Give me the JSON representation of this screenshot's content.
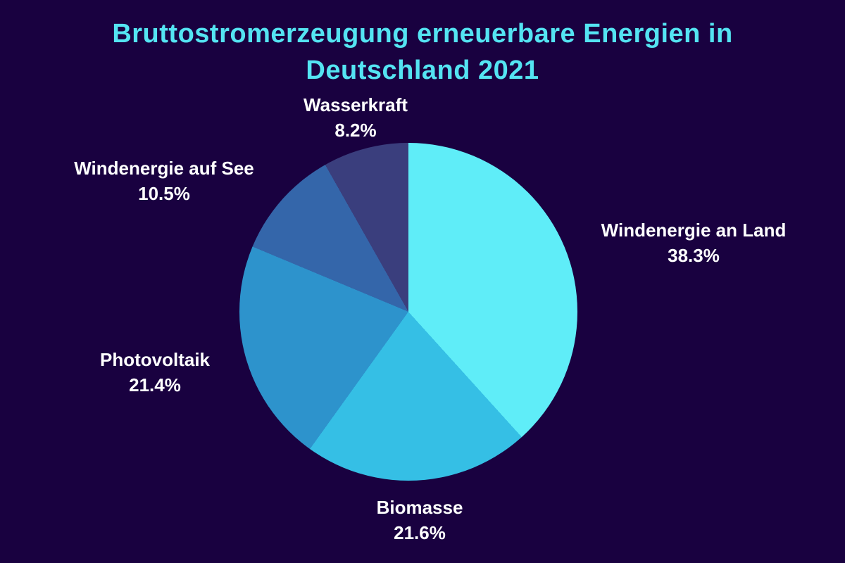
{
  "page": {
    "background_color": "#190140",
    "title_color": "#54e4f2",
    "label_color": "#ffffff"
  },
  "chart_data": {
    "type": "pie",
    "title": "Bruttostromerzeugung erneuerbare Energien in Deutschland 2021",
    "start_angle_deg": 0,
    "direction": "clockwise",
    "legend_position": "none",
    "labels_outside": true,
    "slices": [
      {
        "label": "Windenergie an Land",
        "value": 38.3,
        "percent_label": "38.3%",
        "color": "#5fedf8"
      },
      {
        "label": "Biomasse",
        "value": 21.6,
        "percent_label": "21.6%",
        "color": "#35bfe5"
      },
      {
        "label": "Photovoltaik",
        "value": 21.4,
        "percent_label": "21.4%",
        "color": "#2d93cc"
      },
      {
        "label": "Windenergie auf See",
        "value": 10.5,
        "percent_label": "10.5%",
        "color": "#3466aa"
      },
      {
        "label": "Wasserkraft",
        "value": 8.2,
        "percent_label": "8.2%",
        "color": "#3a3e7d"
      }
    ]
  }
}
